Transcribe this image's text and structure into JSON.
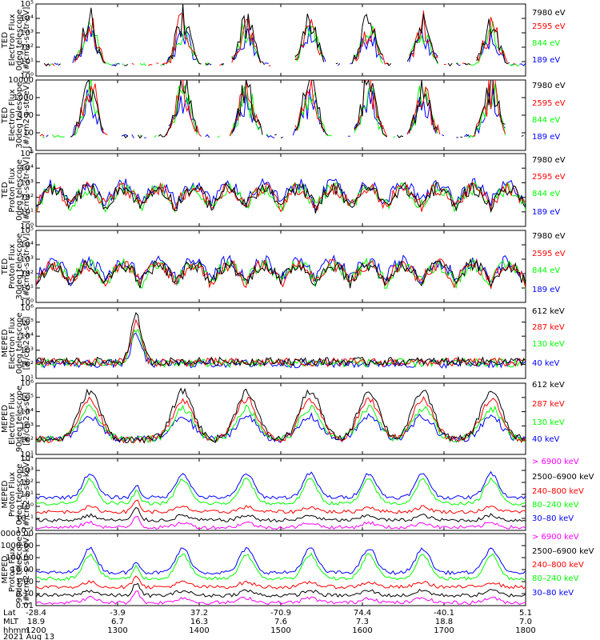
{
  "chart_data": [
    {
      "type": "line",
      "title": "",
      "ylabel": [
        "TED",
        "Electron Flux",
        "0deg telescope",
        "[#/cm2-s-str-eV]"
      ],
      "ylim_exp": [
        0,
        5
      ],
      "ytick_labels": [
        "10⁰",
        "10¹",
        "10²",
        "10³",
        "10⁴",
        "10⁵"
      ],
      "legend": [
        "7980 eV",
        "2595 eV",
        "844 eV",
        "189 eV"
      ],
      "series_colors": [
        "#000000",
        "#ff0000",
        "#00ff00",
        "#0000ff"
      ],
      "profile": "ted_electron"
    },
    {
      "type": "line",
      "title": "",
      "ylabel": [
        "TED",
        "Electron Flux",
        "30deg telescope",
        "[#/cm2-s-str-eV]"
      ],
      "ylim_exp": [
        0,
        4
      ],
      "ytick_labels": [
        "1",
        "10",
        "100",
        "1000",
        "10000"
      ],
      "legend": [
        "7980 eV",
        "2595 eV",
        "844 eV",
        "189 eV"
      ],
      "series_colors": [
        "#000000",
        "#ff0000",
        "#00ff00",
        "#0000ff"
      ],
      "profile": "ted_electron"
    },
    {
      "type": "line",
      "title": "",
      "ylabel": [
        "TED",
        "Proton Flux",
        "0deg telescope",
        "[#/cm2-s-str-eV]"
      ],
      "ylim_exp": [
        0,
        5
      ],
      "ytick_labels": [
        "10⁰",
        "10¹",
        "10²",
        "10³",
        "10⁴",
        "10⁵"
      ],
      "legend": [
        "7980 eV",
        "2595 eV",
        "844 eV",
        "189 eV"
      ],
      "series_colors": [
        "#000000",
        "#ff0000",
        "#00ff00",
        "#0000ff"
      ],
      "profile": "ted_proton"
    },
    {
      "type": "line",
      "title": "",
      "ylabel": [
        "TED",
        "Proton Flux",
        "30deg telescope",
        "[#/cm2-s-str-eV]"
      ],
      "ylim_exp": [
        0,
        5
      ],
      "ytick_labels": [
        "10⁰",
        "10¹",
        "10²",
        "10³",
        "10⁴",
        "10⁵"
      ],
      "legend": [
        "7980 eV",
        "2595 eV",
        "844 eV",
        "189 eV"
      ],
      "series_colors": [
        "#000000",
        "#ff0000",
        "#00ff00",
        "#0000ff"
      ],
      "profile": "ted_proton"
    },
    {
      "type": "line",
      "title": "",
      "ylabel": [
        "MEPED",
        "Electron Flux",
        "0deg telescope",
        "[#/cm2-s-str]"
      ],
      "ylim_exp": [
        1,
        6
      ],
      "ytick_labels": [
        "10¹",
        "10²",
        "10³",
        "10⁴",
        "10⁵",
        "10⁶"
      ],
      "legend": [
        "612 keV",
        "287 keV",
        "130 keV",
        "40 keV"
      ],
      "series_colors": [
        "#000000",
        "#ff0000",
        "#00ff00",
        "#0000ff"
      ],
      "profile": "meped_e0"
    },
    {
      "type": "line",
      "title": "",
      "ylabel": [
        "MEPED",
        "Electron Flux",
        "90deg telescope",
        "[#/cm2-s-str]"
      ],
      "ylim_exp": [
        1,
        6
      ],
      "ytick_labels": [
        "10¹",
        "10²",
        "10³",
        "10⁴",
        "10⁵",
        "10⁶"
      ],
      "legend": [
        "612 keV",
        "287 keV",
        "130 keV",
        "40 keV"
      ],
      "series_colors": [
        "#000000",
        "#ff0000",
        "#00ff00",
        "#0000ff"
      ],
      "profile": "meped_e90"
    },
    {
      "type": "line",
      "title": "",
      "ylabel": [
        "MEPED",
        "Proton Flux",
        "0deg telescope",
        "[#/cm2-s-str-keV]"
      ],
      "ylim_exp": [
        -2,
        4
      ],
      "ytick_labels": [
        "10⁻²",
        "10⁻¹",
        "10⁰",
        "10¹",
        "10²",
        "10³",
        "10⁴"
      ],
      "legend": [
        "> 6900 keV",
        "2500–6900 keV",
        "240–800 keV",
        "80–240 keV",
        "30–80 keV"
      ],
      "series_colors": [
        "#ff00ff",
        "#000000",
        "#ff0000",
        "#00ff00",
        "#0000ff"
      ],
      "profile": "meped_p"
    },
    {
      "type": "line",
      "title": "",
      "ylabel": [
        "MEPED",
        "Proton Flux",
        "90deg telescope",
        "[#/cm2-s-str-keV]"
      ],
      "ylim_exp": [
        -2,
        4
      ],
      "ytick_labels": [
        "0.01",
        "0.10",
        "1.00",
        "10.00",
        "100.00",
        "1000.00",
        "10000.00"
      ],
      "legend": [
        "> 6900 keV",
        "2500–6900 keV",
        "240–800 keV",
        "80–240 keV",
        "30–80 keV"
      ],
      "series_colors": [
        "#ff00ff",
        "#000000",
        "#ff0000",
        "#00ff00",
        "#0000ff"
      ],
      "profile": "meped_p"
    }
  ],
  "time_axis": {
    "ticks_hhmm": [
      "1200",
      "1300",
      "1400",
      "1500",
      "1600",
      "1700",
      "1800"
    ],
    "lat": [
      "-28.4",
      "-3.9",
      "37.2",
      "-70.9",
      "74.4",
      "-40.1",
      "5.1"
    ],
    "mlt": [
      "18.9",
      "6.7",
      "16.3",
      "7.6",
      "7.3",
      "18.8",
      "7.0"
    ],
    "row_labels": [
      "Lat",
      "MLT",
      "hhmm"
    ],
    "date": "2021 Aug 13"
  }
}
